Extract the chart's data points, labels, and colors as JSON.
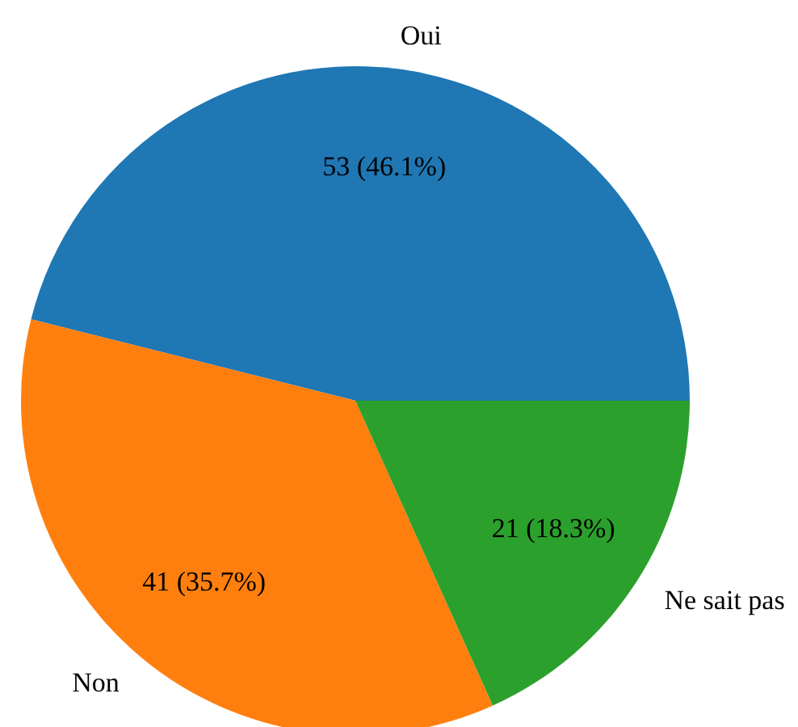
{
  "chart_data": {
    "type": "pie",
    "categories": [
      "Oui",
      "Non",
      "Ne sait pas"
    ],
    "values": [
      53,
      41,
      21
    ],
    "colors": [
      "#1f77b4",
      "#ff7f0e",
      "#2ca02c"
    ],
    "value_labels": [
      "53 (46.1%)",
      "41 (35.7%)",
      "21 (18.3%)"
    ]
  }
}
